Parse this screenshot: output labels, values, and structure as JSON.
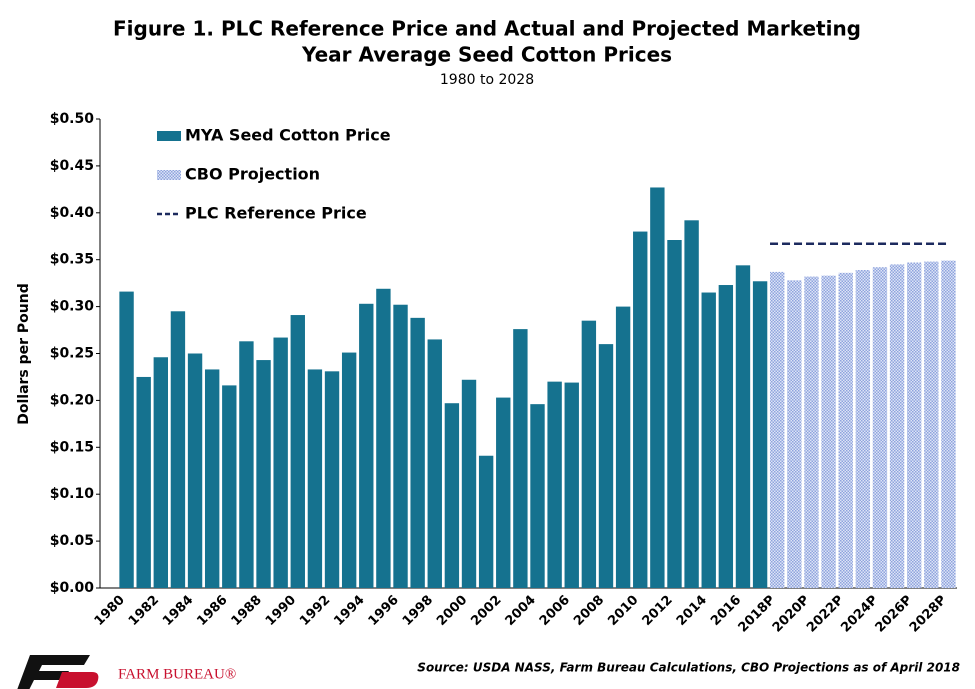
{
  "chart_data": {
    "type": "bar",
    "title": [
      "Figure 1. PLC Reference Price and Actual and Projected Marketing",
      "Year Average Seed Cotton Prices"
    ],
    "subtitle": "1980 to 2028",
    "y_label": "Dollars per Pound",
    "source": "Source: USDA NASS, Farm Bureau Calculations, CBO Projections as of April 2018",
    "logo_text": "FARM BUREAU®",
    "categories": [
      "1980",
      null,
      "1982",
      null,
      "1984",
      null,
      "1986",
      null,
      "1988",
      null,
      "1990",
      null,
      "1992",
      null,
      "1994",
      null,
      "1996",
      null,
      "1998",
      null,
      "2000",
      null,
      "2002",
      null,
      "2004",
      null,
      "2006",
      null,
      "2008",
      null,
      "2010",
      null,
      "2012",
      null,
      "2014",
      null,
      "2016",
      null,
      "2018P",
      null,
      "2020P",
      null,
      "2022P",
      null,
      "2024P",
      null,
      "2026P",
      null,
      "2028P"
    ],
    "series": [
      {
        "name": "MYA Seed Cotton Price",
        "color": "#15728f",
        "pattern": false,
        "values": [
          0.316,
          0.225,
          0.246,
          0.295,
          0.25,
          0.233,
          0.216,
          0.263,
          0.243,
          0.267,
          0.291,
          0.233,
          0.231,
          0.251,
          0.303,
          0.319,
          0.302,
          0.288,
          0.265,
          0.197,
          0.222,
          0.141,
          0.203,
          0.276,
          0.196,
          0.22,
          0.219,
          0.285,
          0.26,
          0.3,
          0.38,
          0.427,
          0.371,
          0.392,
          0.315,
          0.323,
          0.344,
          0.327,
          null,
          null,
          null,
          null,
          null,
          null,
          null,
          null,
          null,
          null,
          null
        ]
      },
      {
        "name": "CBO Projection",
        "color": "#9fb2e6",
        "pattern": true,
        "values": [
          null,
          null,
          null,
          null,
          null,
          null,
          null,
          null,
          null,
          null,
          null,
          null,
          null,
          null,
          null,
          null,
          null,
          null,
          null,
          null,
          null,
          null,
          null,
          null,
          null,
          null,
          null,
          null,
          null,
          null,
          null,
          null,
          null,
          null,
          null,
          null,
          null,
          null,
          0.337,
          0.328,
          0.332,
          0.333,
          0.336,
          0.339,
          0.342,
          0.345,
          0.347,
          0.348,
          0.349
        ]
      }
    ],
    "reference_line": {
      "name": "PLC Reference Price",
      "color": "#1c2a5e",
      "values": [
        null,
        null,
        null,
        null,
        null,
        null,
        null,
        null,
        null,
        null,
        null,
        null,
        null,
        null,
        null,
        null,
        null,
        null,
        null,
        null,
        null,
        null,
        null,
        null,
        null,
        null,
        null,
        null,
        null,
        null,
        null,
        null,
        null,
        null,
        null,
        null,
        null,
        null,
        0.367,
        0.367,
        0.367,
        0.367,
        0.367,
        0.367,
        0.367,
        0.367,
        0.367,
        0.367,
        0.367
      ]
    },
    "ylim": [
      0,
      0.5
    ],
    "yticks": [
      {
        "value": 0,
        "label": "$0.00"
      },
      {
        "value": 0.05,
        "label": "$0.05"
      },
      {
        "value": 0.1,
        "label": "$0.10"
      },
      {
        "value": 0.15,
        "label": "$0.15"
      },
      {
        "value": 0.2,
        "label": "$0.20"
      },
      {
        "value": 0.25,
        "label": "$0.25"
      },
      {
        "value": 0.3,
        "label": "$0.30"
      },
      {
        "value": 0.35,
        "label": "$0.35"
      },
      {
        "value": 0.4,
        "label": "$0.40"
      },
      {
        "value": 0.45,
        "label": "$0.45"
      },
      {
        "value": 0.5,
        "label": "$0.50"
      }
    ],
    "grid": false
  }
}
